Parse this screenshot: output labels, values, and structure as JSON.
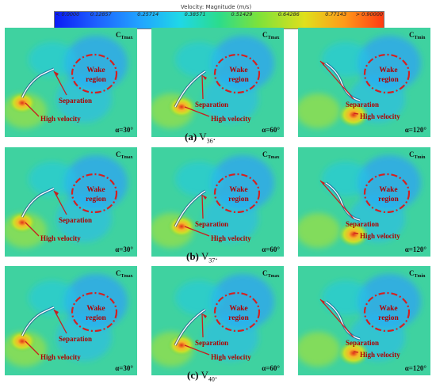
{
  "colorbar": {
    "title": "Velocity: Magnitude (m/s)",
    "ticks": [
      "< 0.0000",
      "0.12857",
      "0.25714",
      "0.38571",
      "0.51429",
      "0.64286",
      "0.77143",
      "> 0.90000"
    ]
  },
  "labels": {
    "wake": [
      "Wake",
      "region"
    ],
    "separation": "Separation",
    "high_velocity": "High velocity"
  },
  "rows": [
    {
      "caption_letter": "(a)",
      "caption_name": "V",
      "caption_sub": "36",
      "caption_end": ".",
      "panels": [
        {
          "tag_main": "C",
          "tag_sub": "Tmax",
          "angle": "α=30°"
        },
        {
          "tag_main": "C",
          "tag_sub": "Tmax",
          "angle": "α=60°"
        },
        {
          "tag_main": "C",
          "tag_sub": "Tmin",
          "angle": "α=120°"
        }
      ]
    },
    {
      "caption_letter": "(b)",
      "caption_name": "V",
      "caption_sub": "37",
      "caption_end": ".",
      "panels": [
        {
          "tag_main": "C",
          "tag_sub": "Tmax",
          "angle": "α=30°"
        },
        {
          "tag_main": "C",
          "tag_sub": "Tmax",
          "angle": "α=60°"
        },
        {
          "tag_main": "C",
          "tag_sub": "Tmin",
          "angle": "α=120°"
        }
      ]
    },
    {
      "caption_letter": "(c)",
      "caption_name": "V",
      "caption_sub": "40",
      "caption_end": ".",
      "panels": [
        {
          "tag_main": "C",
          "tag_sub": "Tmax",
          "angle": "α=30°"
        },
        {
          "tag_main": "C",
          "tag_sub": "Tmax",
          "angle": "α=60°"
        },
        {
          "tag_main": "C",
          "tag_sub": "Tmin",
          "angle": "α=120°"
        }
      ]
    }
  ]
}
